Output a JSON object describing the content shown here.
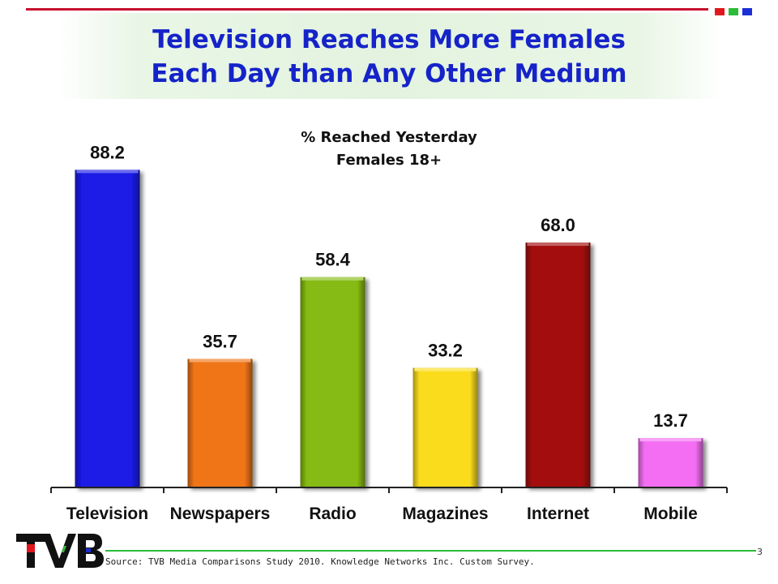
{
  "title_line1": "Television Reaches More Females",
  "title_line2": "Each Day than Any Other Medium",
  "subtitle_line1": "% Reached Yesterday",
  "subtitle_line2": "Females 18+",
  "source": "Source: TVB Media Comparisons Study 2010. Knowledge Networks Inc. Custom Survey.",
  "page_number": "3",
  "logo_text": "TVB",
  "colors": {
    "title": "#1523c9",
    "rule_red": "#c8102e",
    "rule_green": "#2dbb3a",
    "square_red": "#e0161c",
    "square_green": "#2dbb3a",
    "square_blue": "#1a2fd6"
  },
  "chart_data": {
    "type": "bar",
    "title": "% Reached Yesterday",
    "subtitle": "Females 18+",
    "categories": [
      "Television",
      "Newspapers",
      "Radio",
      "Magazines",
      "Internet",
      "Mobile"
    ],
    "values": [
      88.2,
      35.7,
      58.4,
      33.2,
      68.0,
      13.7
    ],
    "value_labels": [
      "88.2",
      "35.7",
      "58.4",
      "33.2",
      "68.0",
      "13.7"
    ],
    "colors": [
      "#1a1ae6",
      "#ef7418",
      "#86bb12",
      "#fadc1e",
      "#a30c0c",
      "#f46ef4"
    ],
    "ylim": [
      0,
      100
    ],
    "grid": false,
    "legend": "none"
  }
}
